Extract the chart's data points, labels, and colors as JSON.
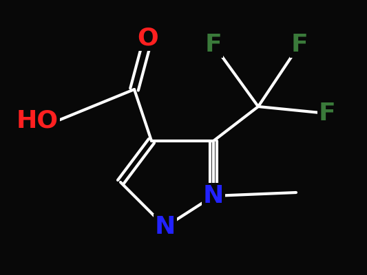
{
  "background_color": "#080808",
  "bond_color": "#ffffff",
  "bond_width": 3.0,
  "atom_colors": {
    "O": "#ff2020",
    "N": "#2222ff",
    "F": "#3a7a3a",
    "C": "#ffffff"
  },
  "font_size_atoms": 26,
  "font_size_ho": 26
}
